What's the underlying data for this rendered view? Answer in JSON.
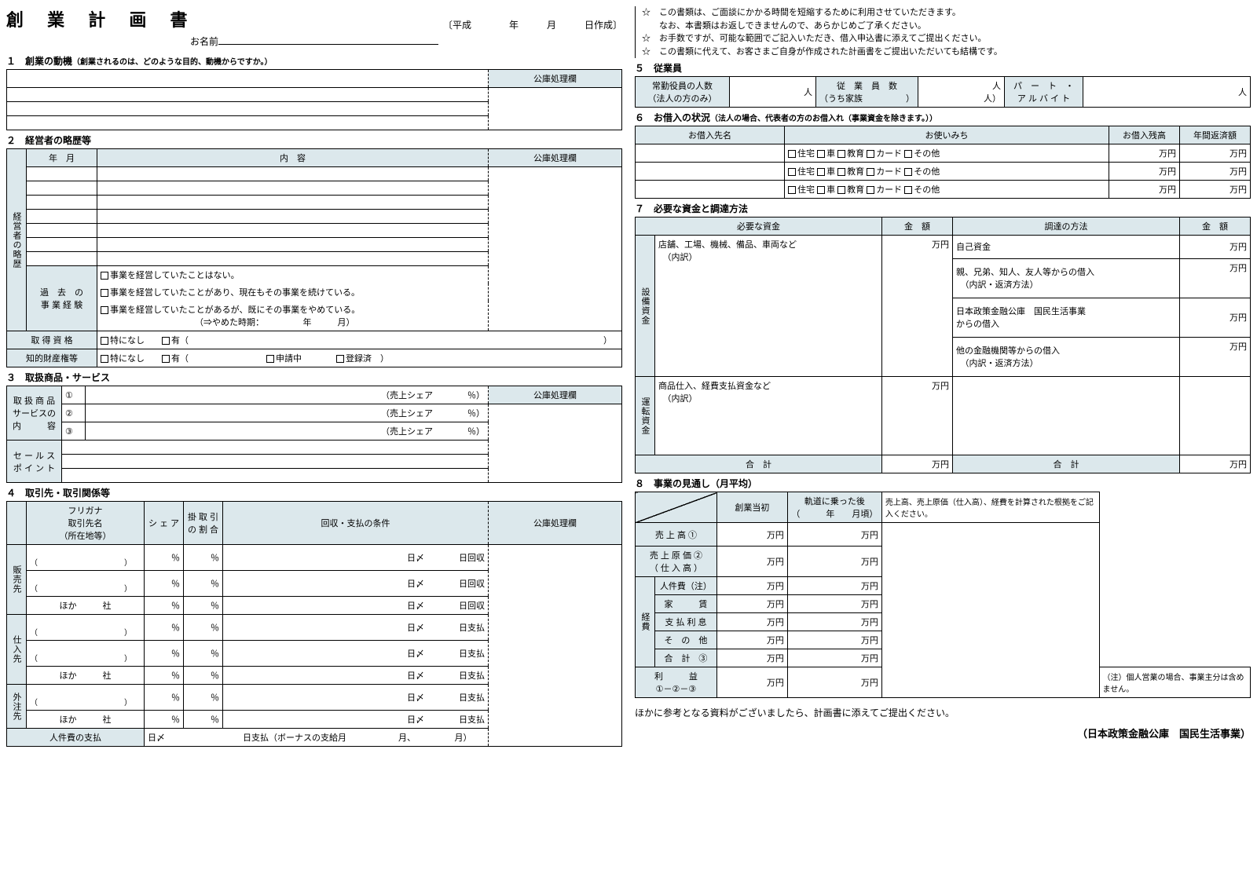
{
  "title": "創 業 計 画 書",
  "date": "〔平成　　　　年　　　月　　　日作成〕",
  "nameLabel": "お名前",
  "notes": [
    "☆　この書類は、ご面談にかかる時間を短縮するために利用させていただきます。\n　　なお、本書類はお返しできませんので、あらかじめご了承ください。",
    "☆　お手数ですが、可能な範囲でご記入いただき、借入申込書に添えてご提出ください。",
    "☆　この書類に代えて、お客さまご自身が作成された計画書をご提出いただいても結構です。"
  ],
  "s1": {
    "hdr": "１　創業の動機",
    "sub": "（創業されるのは、どのような目的、動機からですか。）",
    "kouko": "公庫処理欄"
  },
  "s2": {
    "hdr": "２　経営者の略歴等",
    "cols": [
      "年　月",
      "内　容",
      "公庫処理欄"
    ],
    "rireki": "経営者の略歴",
    "pastExpLabel": "過　去　の\n事 業 経 験",
    "pastExp": [
      "事業を経営していたことはない。",
      "事業を経営していたことがあり、現在もその事業を続けている。",
      "事業を経営していたことがあるが、既にその事業をやめている。"
    ],
    "pastExpEnd": "（⇒やめた時期：　　　　　年　　　月）",
    "shikaku": "取 得 資 格",
    "shikakuOpts": [
      "特になし",
      "有（　　　　　　　　　　　　　　　　　　　　　　　　　　　　　　　　　　　　　　　　　　　　　　　　）"
    ],
    "chiteki": "知的財産権等",
    "chitekiOpts": [
      "特になし",
      "有（",
      "申請中",
      "登録済　）"
    ]
  },
  "s3": {
    "hdr": "３　取扱商品・サービス",
    "goods": "取 扱 商 品\nサービスの\n内　　　容",
    "share": "（売上シェア　　　　％）",
    "nums": [
      "①",
      "②",
      "③"
    ],
    "sales": "セ ー ル ス\nポ イ ン ト",
    "kouko": "公庫処理欄"
  },
  "s4": {
    "hdr": "４　取引先・取引関係等",
    "cols": [
      "フリガナ\n取引先名\n（所在地等）",
      "シ ェ ア",
      "掛 取 引\nの 割 合",
      "回収・支払の条件",
      "公庫処理欄"
    ],
    "hanbai": "販売先",
    "shiire": "仕入先",
    "gaichu": "外注先",
    "hoka": "ほか　　　社",
    "paren": "（　　　　　　　　　　　）",
    "pct": "％",
    "day": "日〆",
    "kaishu": "日回収",
    "shiharai": "日支払",
    "jinken": "人件費の支払",
    "jinkenCond": "日〆　　　　　　　　　日支払（ボーナスの支給月　　　　　　月、　　　　　月）"
  },
  "s5": {
    "hdr": "５　従業員",
    "cols": [
      "常勤役員の人数\n（法人の方のみ）",
      "人",
      "従　業　員　数\n（うち家族　　　　　）",
      "人\n人）",
      "パ　ー　ト　・\nア ル バ イ ト",
      "人"
    ]
  },
  "s6": {
    "hdr": "６　お借入の状況",
    "sub": "（法人の場合、代表者の方のお借入れ（事業資金を除きます。））",
    "cols": [
      "お借入先名",
      "お使いみち",
      "お借入残高",
      "年間返済額"
    ],
    "uses": [
      "住宅",
      "車",
      "教育",
      "カード",
      "その他"
    ],
    "man": "万円"
  },
  "s7": {
    "hdr": "７　必要な資金と調達方法",
    "cols": [
      "必要な資金",
      "金　額",
      "調達の方法",
      "金　額"
    ],
    "setsubi": "設備資金",
    "unten": "運転資金",
    "setsubiTxt": "店舗、工場、機械、備品、車両など\n　（内訳）",
    "untenTxt": "商品仕入、経費支払資金など\n　（内訳）",
    "methods": [
      "自己資金",
      "親、兄弟、知人、友人等からの借入\n　（内訳・返済方法）",
      "日本政策金融公庫　国民生活事業\nからの借入",
      "他の金融機関等からの借入\n　（内訳・返済方法）"
    ],
    "total": "合　計",
    "man": "万円"
  },
  "s8": {
    "hdr": "８　事業の見通し（月平均）",
    "cols": [
      "",
      "創業当初",
      "軌道に乗った後\n（　　　年　　月頃）",
      "売上高、売上原価（仕入高）、経費を計算された根拠をご記入ください。"
    ],
    "rows": [
      "売 上 高 ①",
      "売 上 原 価 ②\n（ 仕 入 高 ）"
    ],
    "keihi": "経費",
    "keihiRows": [
      "人件費（注）",
      "家　　　賃",
      "支 払 利 息",
      "そ　の　他",
      "合　計　③"
    ],
    "profit": "利　　　益\n①－②－③",
    "note": "（注）個人営業の場合、事業主分は含めません。",
    "man": "万円"
  },
  "closing": "ほかに参考となる資料がございましたら、計画書に添えてご提出ください。",
  "footer": "（日本政策金融公庫　国民生活事業）"
}
